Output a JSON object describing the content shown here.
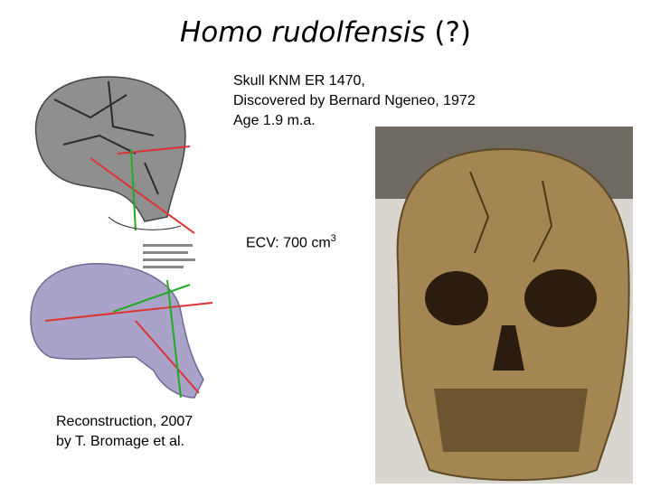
{
  "slide": {
    "title": {
      "italic": "Homo rudolfensis",
      "rest": "(?)"
    },
    "caption": {
      "lines": [
        "Skull KNM ER 1470,",
        "Discovered by Bernard Ngeneo, 1972",
        "Age 1.9 m.a."
      ]
    },
    "ecv": {
      "text": "ECV:  700 cm",
      "superscript": "3"
    },
    "reconstruction": {
      "lines": [
        "Reconstruction, 2007",
        "by T. Bromage et al."
      ]
    }
  }
}
